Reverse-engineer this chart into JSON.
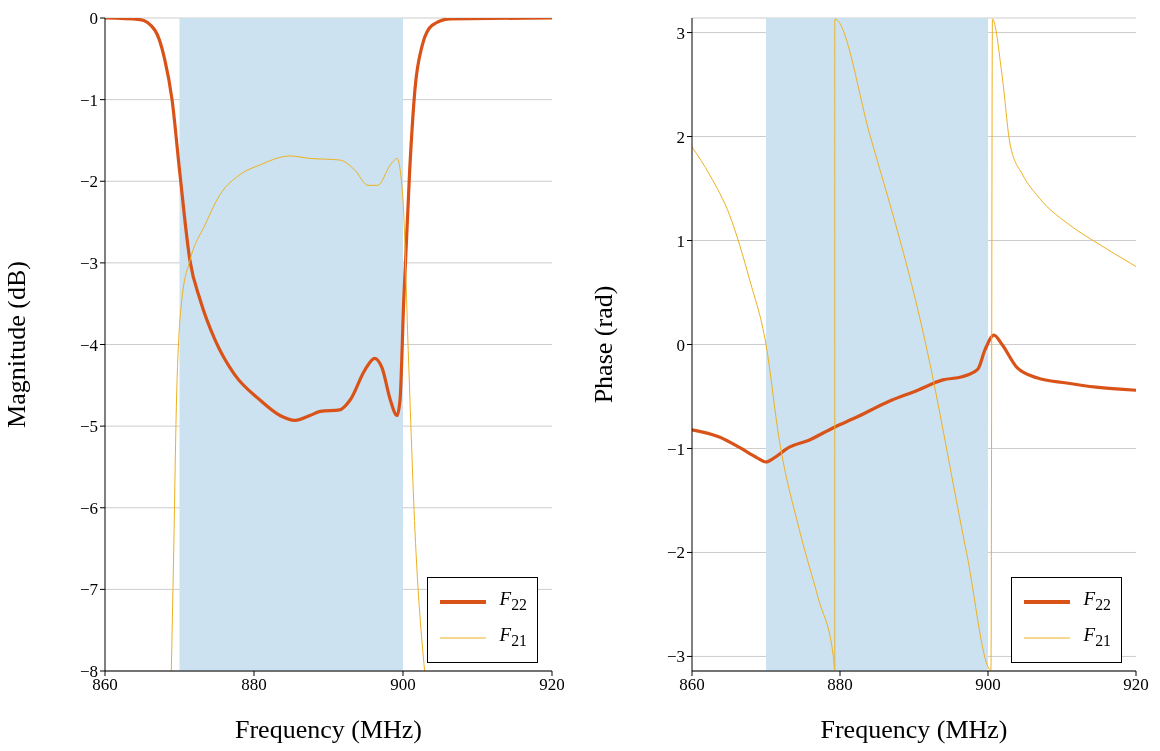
{
  "chart_data": [
    {
      "type": "line",
      "xlabel": "Frequency (MHz)",
      "ylabel": "Magnitude (dB)",
      "xlim": [
        860,
        920
      ],
      "xticks": [
        860,
        880,
        900,
        920
      ],
      "ylim": [
        -8,
        0
      ],
      "yticks": [
        -8,
        -7,
        -6,
        -5,
        -4,
        -3,
        -2,
        -1,
        0
      ],
      "grid": "y",
      "legend": "bottom right",
      "marker": "none",
      "line_style": "solid",
      "bands": [
        {
          "axis": "x",
          "from": 870,
          "to": 900,
          "color": "#cce2f0"
        }
      ],
      "series": [
        {
          "name": "F$_{22}$",
          "color": "#d95319",
          "x": [
            860,
            864.7,
            866.7,
            868,
            869,
            870,
            871.4,
            872.8,
            874.8,
            877.4,
            880.8,
            883.5,
            885.5,
            887.5,
            888.9,
            891.5,
            892.9,
            894.9,
            896.2,
            897.2,
            898.3,
            899.2,
            899.6,
            900.1,
            900.9,
            901.6,
            902.6,
            903.9,
            906.3,
            920
          ],
          "values": [
            0,
            -0.02,
            -0.15,
            -0.5,
            -1.0,
            -1.86,
            -2.97,
            -3.46,
            -3.95,
            -4.37,
            -4.68,
            -4.87,
            -4.93,
            -4.87,
            -4.82,
            -4.8,
            -4.68,
            -4.31,
            -4.17,
            -4.29,
            -4.68,
            -4.87,
            -4.68,
            -3.46,
            -1.86,
            -0.88,
            -0.33,
            -0.09,
            -0.01,
            0
          ]
        },
        {
          "name": "F$_{21}$",
          "color": "#edb120",
          "x": [
            868.9,
            869.2,
            869.6,
            870.3,
            871.4,
            873.4,
            875.4,
            878.1,
            880.8,
            884.8,
            887.5,
            891.5,
            893.5,
            895.3,
            896.6,
            898.3,
            899.2,
            900,
            900.7,
            901.6,
            902.9
          ],
          "values": [
            -8,
            -6.64,
            -4.68,
            -3.46,
            -2.97,
            -2.54,
            -2.17,
            -1.92,
            -1.8,
            -1.69,
            -1.72,
            -1.74,
            -1.86,
            -2.05,
            -2.05,
            -1.8,
            -1.72,
            -2.23,
            -4.07,
            -6.27,
            -8
          ]
        }
      ]
    },
    {
      "type": "line",
      "xlabel": "Frequency (MHz)",
      "ylabel": "Phase (rad)",
      "xlim": [
        860,
        920
      ],
      "xticks": [
        860,
        880,
        900,
        920
      ],
      "ylim": [
        -3.14,
        3.14
      ],
      "yticks": [
        -3,
        -2,
        -1,
        0,
        1,
        2,
        3
      ],
      "grid": "y",
      "legend": "bottom right",
      "marker": "none",
      "line_style": "solid",
      "bands": [
        {
          "axis": "x",
          "from": 870,
          "to": 900,
          "color": "#cce2f0"
        }
      ],
      "series": [
        {
          "name": "F$_{22}$",
          "color": "#d95319",
          "x": [
            860,
            863.7,
            866.4,
            868.8,
            870,
            871.1,
            873.1,
            875.8,
            879.1,
            882.5,
            886.5,
            890.5,
            893.9,
            896.5,
            898.6,
            899.6,
            900.8,
            901.9,
            903.9,
            906.6,
            910.6,
            914.6,
            920
          ],
          "values": [
            -0.82,
            -0.89,
            -0.99,
            -1.09,
            -1.13,
            -1.09,
            -0.99,
            -0.92,
            -0.8,
            -0.69,
            -0.55,
            -0.44,
            -0.34,
            -0.31,
            -0.24,
            -0.05,
            0.09,
            0,
            -0.22,
            -0.32,
            -0.37,
            -0.41,
            -0.44
          ]
        },
        {
          "name": "F$_{21}$",
          "color": "#edb120",
          "x": [
            860,
            862.4,
            865.1,
            867.8,
            870,
            871.8,
            874.5,
            877.1,
            879.1,
            879.3,
            879.3,
            884.1,
            891.6,
            897.1,
            900.4,
            900.6,
            901.9,
            903.0,
            904.7,
            906.8,
            911.4,
            914.2,
            920
          ],
          "values": [
            1.9,
            1.63,
            1.24,
            0.62,
            0,
            -0.92,
            -1.78,
            -2.45,
            -3.0,
            -3.13,
            3.13,
            2,
            0,
            -2,
            -3.13,
            3.13,
            2.59,
            1.92,
            1.63,
            1.42,
            1.13,
            1.0,
            0.75
          ]
        }
      ]
    }
  ]
}
